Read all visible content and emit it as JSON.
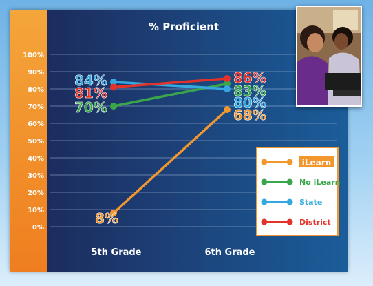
{
  "chart_data": {
    "type": "line",
    "title": "% Proficient",
    "categories": [
      "5th Grade",
      "6th Grade"
    ],
    "ylim": [
      0,
      100
    ],
    "yticks": [
      "0%",
      "10%",
      "20%",
      "30%",
      "40%",
      "50%",
      "60%",
      "70%",
      "80%",
      "90%",
      "100%"
    ],
    "grid": true,
    "legend_placement": "bottom-right",
    "series": [
      {
        "name": "iLearn",
        "values": [
          8,
          68
        ],
        "labels": [
          "8%",
          "68%"
        ],
        "color": "#f2962e"
      },
      {
        "name": "No iLearn",
        "values": [
          70,
          83
        ],
        "labels": [
          "70%",
          "83%"
        ],
        "color": "#3aa64a"
      },
      {
        "name": "State",
        "values": [
          84,
          80
        ],
        "labels": [
          "84%",
          "80%"
        ],
        "color": "#35a8df"
      },
      {
        "name": "District",
        "values": [
          81,
          86
        ],
        "labels": [
          "81%",
          "86%"
        ],
        "color": "#e2332b"
      }
    ]
  },
  "photo": {
    "icon": "students-at-computer-photo"
  }
}
